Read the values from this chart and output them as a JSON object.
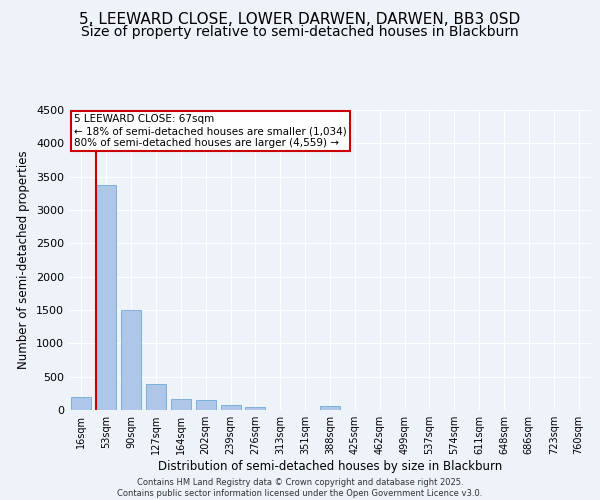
{
  "title": "5, LEEWARD CLOSE, LOWER DARWEN, DARWEN, BB3 0SD",
  "subtitle": "Size of property relative to semi-detached houses in Blackburn",
  "xlabel": "Distribution of semi-detached houses by size in Blackburn",
  "ylabel": "Number of semi-detached properties",
  "categories": [
    "16sqm",
    "53sqm",
    "90sqm",
    "127sqm",
    "164sqm",
    "202sqm",
    "239sqm",
    "276sqm",
    "313sqm",
    "351sqm",
    "388sqm",
    "425sqm",
    "462sqm",
    "499sqm",
    "537sqm",
    "574sqm",
    "611sqm",
    "648sqm",
    "686sqm",
    "723sqm",
    "760sqm"
  ],
  "values": [
    200,
    3380,
    1500,
    390,
    160,
    145,
    70,
    45,
    0,
    0,
    55,
    0,
    0,
    0,
    0,
    0,
    0,
    0,
    0,
    0,
    0
  ],
  "bar_color": "#aec6e8",
  "bar_edge_color": "#5a9fd4",
  "property_line_color": "#cc0000",
  "ylim": [
    0,
    4500
  ],
  "annotation_title": "5 LEEWARD CLOSE: 67sqm",
  "annotation_line1": "← 18% of semi-detached houses are smaller (1,034)",
  "annotation_line2": "80% of semi-detached houses are larger (4,559) →",
  "annotation_box_color": "#cc0000",
  "footer_line1": "Contains HM Land Registry data © Crown copyright and database right 2025.",
  "footer_line2": "Contains public sector information licensed under the Open Government Licence v3.0.",
  "background_color": "#eef2f9",
  "grid_color": "#ffffff",
  "title_fontsize": 11,
  "subtitle_fontsize": 10,
  "axis_label_fontsize": 8.5,
  "tick_fontsize": 7,
  "footer_fontsize": 6
}
